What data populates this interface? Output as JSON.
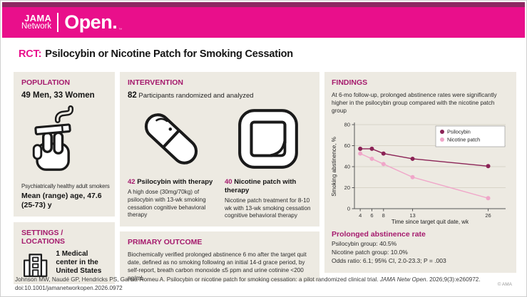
{
  "header": {
    "logo": {
      "jama": "JAMA",
      "network": "Network",
      "open": "Open.",
      "tm": "™"
    },
    "title_prefix": "RCT:",
    "title": "Psilocybin or Nicotine Patch for Smoking Cessation"
  },
  "population": {
    "heading": "POPULATION",
    "demographics": "49 Men, 33 Women",
    "description": "Psychiatrically healthy adult smokers",
    "age": "Mean (range) age, 47.6 (25-73) y"
  },
  "settings": {
    "heading": "SETTINGS / LOCATIONS",
    "text": "1 Medical center in the United States"
  },
  "intervention": {
    "heading": "INTERVENTION",
    "count": "82",
    "count_text": " Participants randomized and analyzed",
    "arms": [
      {
        "count": "42",
        "name": "Psilocybin with therapy",
        "description": "A high dose (30mg/70kg) of psilocybin with 13-wk smoking cessation cognitive behavioral therapy"
      },
      {
        "count": "40",
        "name": "Nicotine patch with therapy",
        "description": "Nicotine patch treatment for 8-10 wk with 13-wk smoking cessation cognitive behavioral therapy"
      }
    ]
  },
  "primary_outcome": {
    "heading": "PRIMARY OUTCOME",
    "text": "Biochemically verified prolonged abstinence 6 mo after the target quit date, defined as no smoking following an initial 14-d grace period, by self-report, breath carbon monoxide ≤5 ppm and urine cotinine <200 ng/mL"
  },
  "findings": {
    "heading": "FINDINGS",
    "summary": "At 6-mo follow-up, prolonged abstinence rates were significantly higher in the psilocybin group compared with the nicotine patch group",
    "result_heading": "Prolonged abstinence rate",
    "results": [
      "Psilocybin group: 40.5%",
      "Nicotine patch group: 10.0%",
      "Odds ratio: 6.1; 95% CI, 2.0-23.3; P = .003"
    ]
  },
  "chart_data": {
    "type": "line",
    "x": [
      4,
      6,
      8,
      13,
      26
    ],
    "xticks": [
      4,
      6,
      8,
      13,
      26
    ],
    "yticks": [
      0,
      20,
      40,
      60,
      80
    ],
    "ylim": [
      0,
      80
    ],
    "xdomain": [
      3,
      29
    ],
    "series": [
      {
        "name": "Psilocybin",
        "values": [
          57,
          57,
          52.5,
          47.5,
          40.5
        ],
        "color": "#8b2356"
      },
      {
        "name": "Nicotine patch",
        "values": [
          52.5,
          47.5,
          42.5,
          30,
          10
        ],
        "color": "#f0a6c9"
      }
    ],
    "xlabel": "Time since target quit date, wk",
    "ylabel": "Smoking abstinence, %",
    "legend_position": "top-right",
    "grid": true
  },
  "footer": {
    "citation_part1": "Johnson MW, Naudé GP, Hendricks PS, Garcia-Romeu A. Psilocybin or nicotine patch for smoking cessation: a pilot randomized clinical trial. ",
    "citation_journal": "JAMA Netw Open",
    "citation_part2": ". 2026;9(3):e260972.",
    "citation_line2": "doi:10.1001/jamanetworkopen.2026.0972",
    "copyright": "© AMA"
  },
  "colors": {
    "brand_pink": "#e90f8b",
    "stripe_plum": "#8d2862",
    "heading_magenta": "#a51a6d",
    "panel_beige": "#edeae2",
    "psilocybin_series": "#8b2356",
    "nicotine_series": "#f0a6c9"
  }
}
